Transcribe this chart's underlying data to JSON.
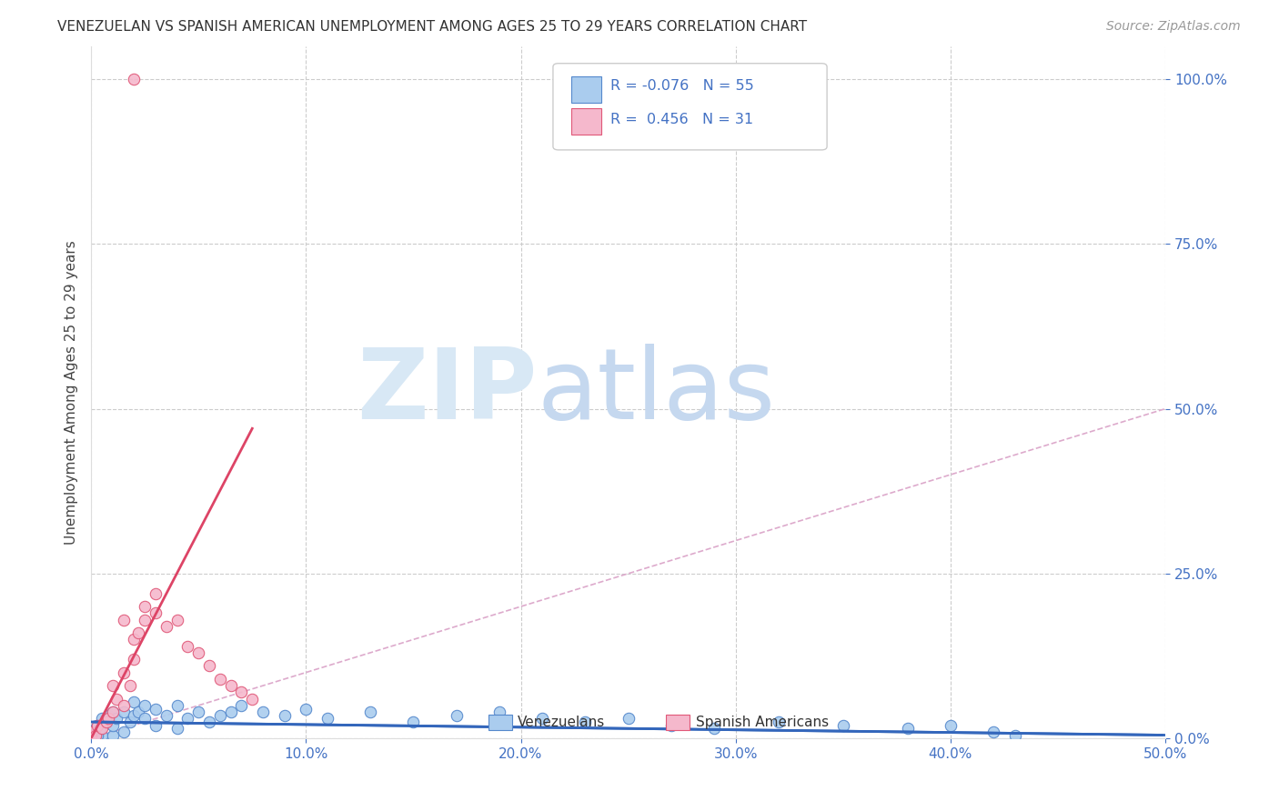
{
  "title": "VENEZUELAN VS SPANISH AMERICAN UNEMPLOYMENT AMONG AGES 25 TO 29 YEARS CORRELATION CHART",
  "source": "Source: ZipAtlas.com",
  "ylabel": "Unemployment Among Ages 25 to 29 years",
  "xmin": 0.0,
  "xmax": 0.5,
  "ymin": 0.0,
  "ymax": 1.05,
  "xticks": [
    0.0,
    0.1,
    0.2,
    0.3,
    0.4,
    0.5
  ],
  "xtick_labels": [
    "0.0%",
    "10.0%",
    "20.0%",
    "30.0%",
    "40.0%",
    "50.0%"
  ],
  "yticks": [
    0.0,
    0.25,
    0.5,
    0.75,
    1.0
  ],
  "ytick_labels": [
    "0.0%",
    "25.0%",
    "50.0%",
    "75.0%",
    "100.0%"
  ],
  "color_venezuelan_fill": "#aaccee",
  "color_venezuelan_edge": "#5588cc",
  "color_spanish_fill": "#f5b8cc",
  "color_spanish_edge": "#e05878",
  "color_trend_venezuelan": "#3366bb",
  "color_trend_spanish": "#dd4466",
  "color_diagonal": "#ddaacc",
  "watermark_zip_color": "#dce8f5",
  "watermark_atlas_color": "#c8dff0",
  "ven_x": [
    0.0,
    0.0,
    0.0,
    0.002,
    0.003,
    0.005,
    0.005,
    0.007,
    0.008,
    0.01,
    0.01,
    0.01,
    0.012,
    0.015,
    0.015,
    0.018,
    0.02,
    0.02,
    0.022,
    0.025,
    0.025,
    0.03,
    0.03,
    0.035,
    0.04,
    0.04,
    0.045,
    0.05,
    0.055,
    0.06,
    0.065,
    0.07,
    0.08,
    0.09,
    0.1,
    0.11,
    0.13,
    0.15,
    0.17,
    0.19,
    0.21,
    0.23,
    0.25,
    0.27,
    0.29,
    0.32,
    0.35,
    0.38,
    0.4,
    0.42,
    0.43,
    0.001,
    0.001,
    0.003,
    0.004
  ],
  "ven_y": [
    0.0,
    0.005,
    0.01,
    0.015,
    0.02,
    0.005,
    0.03,
    0.025,
    0.035,
    0.005,
    0.02,
    0.04,
    0.03,
    0.01,
    0.04,
    0.025,
    0.035,
    0.055,
    0.04,
    0.03,
    0.05,
    0.02,
    0.045,
    0.035,
    0.015,
    0.05,
    0.03,
    0.04,
    0.025,
    0.035,
    0.04,
    0.05,
    0.04,
    0.035,
    0.045,
    0.03,
    0.04,
    0.025,
    0.035,
    0.04,
    0.03,
    0.025,
    0.03,
    0.02,
    0.015,
    0.025,
    0.02,
    0.015,
    0.02,
    0.01,
    0.005,
    0.0,
    0.01,
    0.005,
    0.015
  ],
  "sp_x": [
    0.0,
    0.0,
    0.002,
    0.003,
    0.005,
    0.007,
    0.008,
    0.01,
    0.01,
    0.012,
    0.015,
    0.015,
    0.018,
    0.02,
    0.02,
    0.022,
    0.025,
    0.025,
    0.03,
    0.03,
    0.035,
    0.04,
    0.045,
    0.05,
    0.055,
    0.06,
    0.065,
    0.07,
    0.075,
    0.02,
    0.015
  ],
  "sp_y": [
    0.005,
    0.01,
    0.005,
    0.02,
    0.015,
    0.025,
    0.03,
    0.04,
    0.08,
    0.06,
    0.05,
    0.1,
    0.08,
    0.12,
    0.15,
    0.16,
    0.18,
    0.2,
    0.19,
    0.22,
    0.17,
    0.18,
    0.14,
    0.13,
    0.11,
    0.09,
    0.08,
    0.07,
    0.06,
    1.0,
    0.18
  ],
  "sp_trend_x0": 0.0,
  "sp_trend_y0": 0.0,
  "sp_trend_x1": 0.075,
  "sp_trend_y1": 0.47,
  "ven_trend_x0": 0.0,
  "ven_trend_y0": 0.025,
  "ven_trend_x1": 0.5,
  "ven_trend_y1": 0.005
}
